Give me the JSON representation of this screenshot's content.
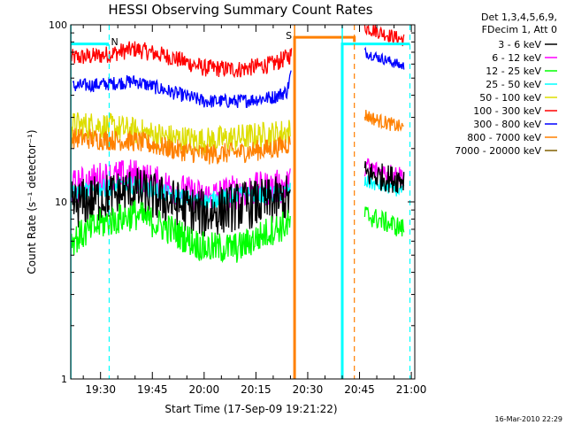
{
  "chart_data": {
    "type": "line",
    "title": "HESSI Observing Summary Count Rates",
    "xlabel": "Start Time (17-Sep-09 19:21:22)",
    "ylabel": "Count Rate (s⁻¹ detector⁻¹)",
    "yscale": "log",
    "ylim": [
      1,
      100
    ],
    "xlim_minutes": [
      "19:21:22",
      "21:01:00"
    ],
    "y_tick_labels": [
      "1",
      "10",
      "100"
    ],
    "x_tick_labels": [
      "19:30",
      "19:45",
      "20:00",
      "20:15",
      "20:30",
      "20:45",
      "21:00"
    ],
    "x_tick_values_min": [
      1170,
      1185,
      1200,
      1215,
      1230,
      1245,
      1260
    ],
    "legend_header": [
      "Det 1,3,4,5,6,9,",
      "FDecim 1, Att 0"
    ],
    "legend": [
      {
        "label": "3 - 6 keV",
        "color": "#000000"
      },
      {
        "label": "6 - 12 keV",
        "color": "#ff00ff"
      },
      {
        "label": "12 - 25 keV",
        "color": "#00ff00"
      },
      {
        "label": "25 - 50 keV",
        "color": "#00ffff"
      },
      {
        "label": "50 - 100 keV",
        "color": "#dddd00"
      },
      {
        "label": "100 - 300 keV",
        "color": "#ff0000"
      },
      {
        "label": "300 - 800 keV",
        "color": "#0000ff"
      },
      {
        "label": "800 - 7000 keV",
        "color": "#ff8000"
      },
      {
        "label": "7000 - 20000 keV",
        "color": "#806000"
      }
    ],
    "flag_label": "S",
    "night_label": "N",
    "timestamp": "16-Mar-2010 22:29",
    "series": [
      {
        "name": "100 - 300 keV",
        "color": "#ff0000",
        "segments": [
          {
            "x": [
              1161.4,
              1170,
              1180,
              1190,
              1200,
              1210,
              1220,
              1223,
              1225.3
            ],
            "y": [
              65,
              67,
              73,
              66,
              57,
              56,
              60,
              64,
              68
            ],
            "jitter": 0.05
          },
          {
            "x": [
              1246.5,
              1250,
              1253,
              1258
            ],
            "y": [
              97,
              92,
              88,
              82
            ],
            "jitter": 0.04
          }
        ]
      },
      {
        "name": "300 - 800 keV",
        "color": "#0000ff",
        "segments": [
          {
            "x": [
              1162,
              1170,
              1180,
              1190,
              1200,
              1210,
              1220,
              1224,
              1225.3
            ],
            "y": [
              45,
              46,
              48,
              42,
              37,
              37,
              39,
              42,
              55
            ],
            "jitter": 0.04
          },
          {
            "x": [
              1246.5,
              1250,
              1254,
              1258
            ],
            "y": [
              70,
              66,
              62,
              58
            ],
            "jitter": 0.03
          }
        ]
      },
      {
        "name": "50 - 100 keV",
        "color": "#dddd00",
        "segments": [
          {
            "x": [
              1161.4,
              1170,
              1180,
              1190,
              1200,
              1210,
              1220,
              1225
            ],
            "y": [
              27,
              27,
              25,
              23,
              22,
              23,
              24,
              25
            ],
            "jitter": 0.08
          }
        ]
      },
      {
        "name": "800 - 7000 keV",
        "color": "#ff8000",
        "segments": [
          {
            "x": [
              1161.4,
              1170,
              1180,
              1190,
              1200,
              1210,
              1220,
              1225
            ],
            "y": [
              23,
              22.5,
              22,
              20,
              18.5,
              19,
              20,
              21.5
            ],
            "jitter": 0.06
          },
          {
            "x": [
              1246.5,
              1250,
              1254,
              1258
            ],
            "y": [
              31,
              29,
              27.5,
              26
            ],
            "jitter": 0.04
          }
        ]
      },
      {
        "name": "6 - 12 keV",
        "color": "#ff00ff",
        "segments": [
          {
            "x": [
              1161.4,
              1170,
              1180,
              1190,
              1200,
              1210,
              1220,
              1225
            ],
            "y": [
              12,
              13.5,
              14,
              12,
              10.5,
              11.5,
              12,
              12.5
            ],
            "jitter": 0.1
          },
          {
            "x": [
              1246.5,
              1250,
              1254,
              1258
            ],
            "y": [
              16,
              15,
              14.5,
              14
            ],
            "jitter": 0.06
          }
        ]
      },
      {
        "name": "25 - 50 keV",
        "color": "#00ffff",
        "segments": [
          {
            "x": [
              1161.4,
              1170,
              1180,
              1190,
              1200,
              1210,
              1220,
              1225
            ],
            "y": [
              11,
              12,
              12.5,
              11,
              10,
              11,
              11,
              11.5
            ],
            "jitter": 0.05
          },
          {
            "x": [
              1246.5,
              1250,
              1254,
              1258
            ],
            "y": [
              13,
              12.5,
              12,
              11.5
            ],
            "jitter": 0.04
          }
        ]
      },
      {
        "name": "3 - 6 keV",
        "color": "#000000",
        "segments": [
          {
            "x": [
              1161.4,
              1170,
              1180,
              1190,
              1200,
              1210,
              1220,
              1225
            ],
            "y": [
              9.5,
              10.5,
              11.5,
              10,
              8.5,
              9.5,
              10,
              10.5
            ],
            "jitter": 0.14
          },
          {
            "x": [
              1246.5,
              1250,
              1254,
              1258
            ],
            "y": [
              14.5,
              14,
              13.5,
              13.5
            ],
            "jitter": 0.08
          }
        ]
      },
      {
        "name": "12 - 25 keV",
        "color": "#00ff00",
        "segments": [
          {
            "x": [
              1161.4,
              1170,
              1180,
              1190,
              1200,
              1210,
              1220,
              1225
            ],
            "y": [
              6,
              7.5,
              8.5,
              7,
              5.5,
              5.5,
              7,
              7.5
            ],
            "jitter": 0.09
          },
          {
            "x": [
              1246.5,
              1250,
              1254,
              1258
            ],
            "y": [
              8.5,
              8,
              7.5,
              7
            ],
            "jitter": 0.06
          }
        ]
      }
    ],
    "step_lines": [
      {
        "name": "attenuator-state",
        "color": "#00ffff",
        "x": [
          1161.4,
          1172,
          1172
        ],
        "y": [
          78,
          78,
          76
        ]
      },
      {
        "name": "attenuator-state-right",
        "color": "#00ffff",
        "x": [
          1240,
          1240,
          1259.6
        ],
        "y": [
          1,
          78,
          78
        ]
      },
      {
        "name": "saa-flag",
        "color": "#ff8000",
        "x": [
          1226.2,
          1226.2,
          1243.5,
          1243.5
        ],
        "y": [
          1,
          85,
          85,
          80
        ]
      }
    ],
    "vlines_solid": [
      {
        "x": 1226.2,
        "color": "#ff8000"
      },
      {
        "x": 1240,
        "color": "#00ffff"
      },
      {
        "x": 1161.4,
        "color": "#00ffff"
      }
    ],
    "vlines_dashed": [
      {
        "x": 1172.5,
        "color": "#00ffff"
      },
      {
        "x": 1243.5,
        "color": "#ff8000"
      },
      {
        "x": 1259.6,
        "color": "#00ffff"
      }
    ]
  }
}
